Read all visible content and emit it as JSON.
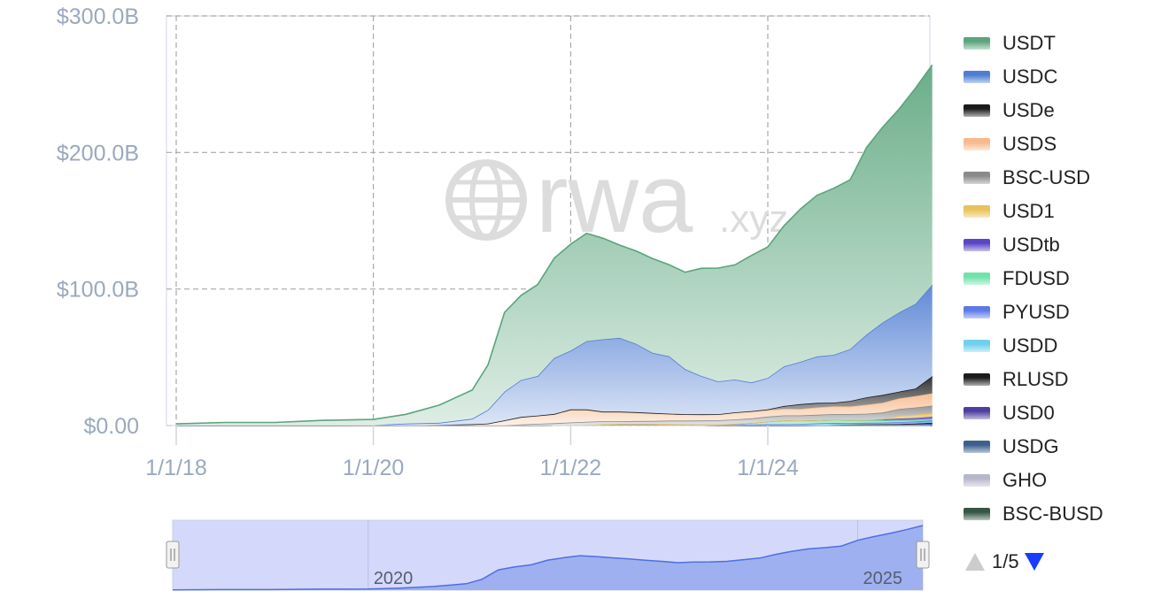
{
  "chart_data": {
    "type": "area",
    "stacked": true,
    "x_unit": "date",
    "x": [
      "2018-01-01",
      "2018-07-01",
      "2019-01-01",
      "2019-07-01",
      "2020-01-01",
      "2020-05-01",
      "2020-09-01",
      "2021-01-01",
      "2021-03-01",
      "2021-05-01",
      "2021-07-01",
      "2021-09-01",
      "2021-11-01",
      "2022-01-01",
      "2022-03-01",
      "2022-05-01",
      "2022-07-01",
      "2022-09-01",
      "2022-11-01",
      "2023-01-01",
      "2023-03-01",
      "2023-05-01",
      "2023-07-01",
      "2023-09-01",
      "2023-11-01",
      "2024-01-01",
      "2024-03-01",
      "2024-05-01",
      "2024-07-01",
      "2024-09-01",
      "2024-11-01",
      "2025-01-01",
      "2025-03-01",
      "2025-05-01",
      "2025-07-01",
      "2025-09-01"
    ],
    "series": [
      {
        "name": "BSC-BUSD",
        "color": "#355545",
        "values": [
          0,
          0,
          0,
          0,
          0,
          0,
          0,
          0,
          0,
          0,
          0,
          0.1,
          0.2,
          0.3,
          0.4,
          0.5,
          0.5,
          0.5,
          0.5,
          0.4,
          0.3,
          0.2,
          0.1,
          0.1,
          0,
          0,
          0,
          0,
          0,
          0,
          0,
          0,
          0,
          0,
          0,
          0
        ]
      },
      {
        "name": "GHO",
        "color": "#b7b7cc",
        "values": [
          0,
          0,
          0,
          0,
          0,
          0,
          0,
          0,
          0,
          0,
          0,
          0,
          0,
          0,
          0,
          0,
          0,
          0,
          0,
          0,
          0,
          0,
          0.01,
          0.03,
          0.03,
          0.03,
          0.03,
          0.05,
          0.1,
          0.15,
          0.2,
          0.2,
          0.2,
          0.2,
          0.2,
          0.3
        ]
      },
      {
        "name": "USDG",
        "color": "#3d5f8f",
        "values": [
          0,
          0,
          0,
          0,
          0,
          0,
          0,
          0,
          0,
          0,
          0,
          0,
          0,
          0,
          0,
          0,
          0,
          0,
          0,
          0,
          0,
          0,
          0,
          0,
          0,
          0,
          0,
          0,
          0,
          0,
          0,
          0,
          0,
          0,
          0.3,
          0.6
        ]
      },
      {
        "name": "USD0",
        "color": "#4d3fa0",
        "values": [
          0,
          0,
          0,
          0,
          0,
          0,
          0,
          0,
          0,
          0,
          0,
          0,
          0,
          0,
          0,
          0,
          0,
          0,
          0,
          0,
          0,
          0,
          0,
          0,
          0,
          0,
          0,
          0,
          0.1,
          0.3,
          0.5,
          0.6,
          0.6,
          0.6,
          0.6,
          0.6
        ]
      },
      {
        "name": "RLUSD",
        "color": "#1c1c1c",
        "values": [
          0,
          0,
          0,
          0,
          0,
          0,
          0,
          0,
          0,
          0,
          0,
          0,
          0,
          0,
          0,
          0,
          0,
          0,
          0,
          0,
          0,
          0,
          0,
          0,
          0,
          0,
          0,
          0,
          0,
          0,
          0,
          0.1,
          0.2,
          0.3,
          0.4,
          0.6
        ]
      },
      {
        "name": "USDD",
        "color": "#6fd0ec",
        "values": [
          0,
          0,
          0,
          0,
          0,
          0,
          0,
          0,
          0,
          0,
          0,
          0,
          0,
          0,
          0.1,
          0.5,
          0.7,
          0.7,
          0.7,
          0.7,
          0.7,
          0.7,
          0.7,
          0.7,
          0.7,
          0.7,
          0.7,
          0.7,
          0.7,
          0.7,
          0.7,
          0.7,
          0.6,
          0.6,
          0.6,
          0.6
        ]
      },
      {
        "name": "PYUSD",
        "color": "#5d79e8",
        "values": [
          0,
          0,
          0,
          0,
          0,
          0,
          0,
          0,
          0,
          0,
          0,
          0,
          0,
          0,
          0,
          0,
          0,
          0,
          0,
          0,
          0,
          0,
          0,
          0.05,
          0.2,
          0.3,
          0.3,
          0.5,
          0.7,
          0.8,
          0.5,
          0.5,
          0.6,
          0.8,
          0.9,
          1.2
        ]
      },
      {
        "name": "FDUSD",
        "color": "#6fe3a8",
        "values": [
          0,
          0,
          0,
          0,
          0,
          0,
          0,
          0,
          0,
          0,
          0,
          0,
          0,
          0,
          0,
          0,
          0,
          0,
          0,
          0,
          0,
          0,
          0.1,
          0.4,
          1.0,
          2.0,
          2.8,
          2.5,
          2.4,
          2.5,
          2.2,
          1.8,
          1.5,
          1.2,
          1.0,
          0.9
        ]
      },
      {
        "name": "USDtb",
        "color": "#5b45c4",
        "values": [
          0,
          0,
          0,
          0,
          0,
          0,
          0,
          0,
          0,
          0,
          0,
          0,
          0,
          0,
          0,
          0,
          0,
          0,
          0,
          0,
          0,
          0,
          0,
          0,
          0,
          0,
          0,
          0,
          0,
          0,
          0.1,
          0.3,
          0.8,
          1.4,
          1.5,
          1.6
        ]
      },
      {
        "name": "USD1",
        "color": "#e8c25a",
        "values": [
          0,
          0,
          0,
          0,
          0,
          0,
          0,
          0,
          0,
          0,
          0,
          0,
          0,
          0,
          0,
          0,
          0,
          0,
          0,
          0,
          0,
          0,
          0,
          0,
          0,
          0,
          0,
          0,
          0,
          0,
          0,
          0,
          0.2,
          2.1,
          2.5,
          2.7
        ]
      },
      {
        "name": "BSC-USD",
        "color": "#8a8a8a",
        "values": [
          0,
          0,
          0,
          0,
          0,
          0,
          0,
          0,
          0,
          0.3,
          0.8,
          1.2,
          1.5,
          2.0,
          2.3,
          2.2,
          2.0,
          2.1,
          2.2,
          2.5,
          2.6,
          2.8,
          3.0,
          3.2,
          3.3,
          3.5,
          3.6,
          3.7,
          3.9,
          4.0,
          4.2,
          4.5,
          4.8,
          5.0,
          5.2,
          5.5
        ]
      },
      {
        "name": "USDS",
        "color": "#f6b98c",
        "values": [
          0,
          0,
          0,
          0,
          0.1,
          0.2,
          0.5,
          1.0,
          1.5,
          3.5,
          5.5,
          6.0,
          6.8,
          9.5,
          9.0,
          7.0,
          7.0,
          6.5,
          5.8,
          5.1,
          4.7,
          4.5,
          4.4,
          5.2,
          5.2,
          4.8,
          4.9,
          4.7,
          5.4,
          5.6,
          5.6,
          6.5,
          7.2,
          7.6,
          8.4,
          9.0
        ]
      },
      {
        "name": "USDe",
        "color": "#1b1b1b",
        "values": [
          0,
          0,
          0,
          0,
          0,
          0,
          0,
          0,
          0,
          0,
          0,
          0,
          0,
          0,
          0,
          0,
          0,
          0,
          0,
          0,
          0,
          0,
          0,
          0,
          0.1,
          0.5,
          2.0,
          3.5,
          3.3,
          2.7,
          4.0,
          5.5,
          5.7,
          5.0,
          5.5,
          12.5
        ]
      },
      {
        "name": "USDC",
        "color": "#4f7dd2",
        "values": [
          0,
          0.1,
          0.1,
          0.3,
          0.2,
          1.2,
          1.5,
          4,
          10,
          21,
          27,
          29,
          41,
          43,
          50,
          53,
          54,
          50,
          44,
          42,
          33,
          28,
          24,
          24,
          21,
          23,
          29,
          31,
          34,
          35,
          38,
          46,
          53,
          58,
          62,
          67
        ]
      },
      {
        "name": "USDT",
        "color": "#5aa57c",
        "values": [
          1.2,
          2.2,
          2.2,
          3.5,
          4.2,
          6.8,
          13,
          21,
          33,
          58,
          62,
          67,
          73,
          78,
          79,
          74,
          68,
          68,
          69,
          67,
          71,
          79,
          83,
          84,
          93,
          96,
          103,
          112,
          118,
          122,
          124,
          137,
          143,
          149,
          158,
          161
        ]
      }
    ],
    "legend": [
      "USDT",
      "USDC",
      "USDe",
      "USDS",
      "BSC-USD",
      "USD1",
      "USDtb",
      "FDUSD",
      "PYUSD",
      "USDD",
      "RLUSD",
      "USD0",
      "USDG",
      "GHO",
      "BSC-BUSD"
    ],
    "legend_position": "right",
    "yticks": [
      "$300.0B",
      "$200.0B",
      "$100.0B",
      "$0.00"
    ],
    "ytick_values": [
      300,
      200,
      100,
      0
    ],
    "ylim": [
      0,
      300
    ],
    "xticks": [
      "1/1/18",
      "1/1/20",
      "1/1/22",
      "1/1/24"
    ],
    "xtick_dates": [
      "2018-01-01",
      "2020-01-01",
      "2022-01-01",
      "2024-01-01"
    ],
    "xlim": [
      "2018-01-01",
      "2025-09-01"
    ],
    "grid": true,
    "navigator": {
      "labels": [
        "2020",
        "2025"
      ],
      "label_dates": [
        "2020-01-01",
        "2025-01-01"
      ]
    }
  },
  "watermark": {
    "main": "rwa",
    "suffix": ".xyz"
  },
  "legend_pager": {
    "text": "1/5"
  }
}
